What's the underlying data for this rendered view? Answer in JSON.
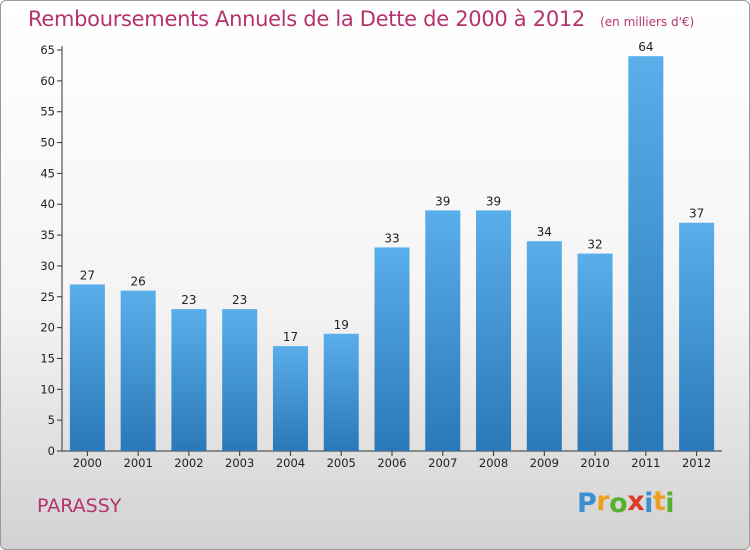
{
  "chart_data": {
    "type": "bar",
    "title": "Remboursements Annuels de la Dette de 2000 à 2012",
    "subtitle": "(en milliers d'€)",
    "categories": [
      "2000",
      "2001",
      "2002",
      "2003",
      "2004",
      "2005",
      "2006",
      "2007",
      "2008",
      "2009",
      "2010",
      "2011",
      "2012"
    ],
    "values": [
      27,
      26,
      23,
      23,
      17,
      19,
      33,
      39,
      39,
      34,
      32,
      64,
      37
    ],
    "ylim": [
      0,
      65
    ],
    "yticks": [
      0,
      5,
      10,
      15,
      20,
      25,
      30,
      35,
      40,
      45,
      50,
      55,
      60,
      65
    ],
    "grid": false,
    "legend": "none",
    "colors": {
      "bar_top": "#5aaeea",
      "bar_bottom": "#2a78b8",
      "title": "#b4336f",
      "axis": "#333333"
    }
  },
  "commune": "PARASSY",
  "brand": {
    "name": "Proxiti",
    "letters": [
      "P",
      "r",
      "o",
      "x",
      "i",
      "t",
      "i"
    ],
    "letter_colors": [
      "#3a8fd0",
      "#f0a020",
      "#58b030",
      "#e03a2a",
      "#3a8fd0",
      "#f0a020",
      "#58b030"
    ]
  }
}
